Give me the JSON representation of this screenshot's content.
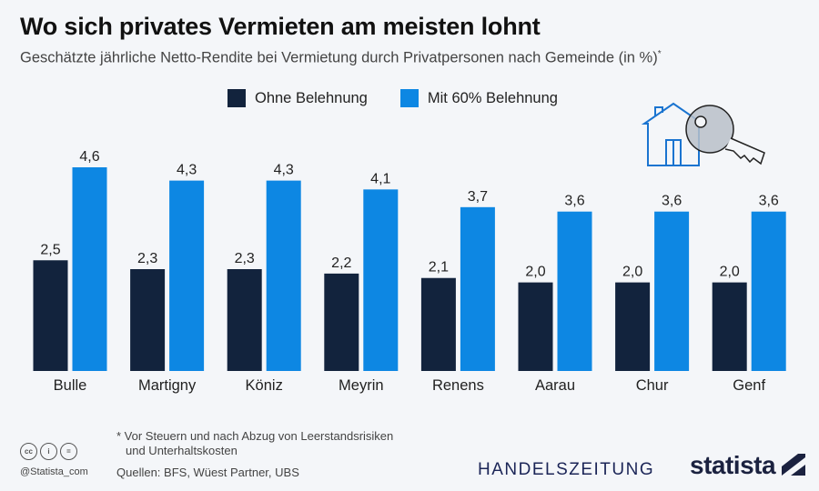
{
  "title": "Wo sich privates Vermieten am meisten lohnt",
  "subtitle": "Geschätzte jährliche Netto-Rendite bei Vermietung durch Privatpersonen nach Gemeinde (in %)",
  "subtitle_mark": "*",
  "colors": {
    "dark": "#12233d",
    "blue": "#0d87e3",
    "background": "#f4f6f9"
  },
  "chart_data": {
    "type": "bar",
    "categories": [
      "Bulle",
      "Martigny",
      "Köniz",
      "Meyrin",
      "Renens",
      "Aarau",
      "Chur",
      "Genf"
    ],
    "series": [
      {
        "name": "Ohne Belehnung",
        "values": [
          2.5,
          2.3,
          2.3,
          2.2,
          2.1,
          2.0,
          2.0,
          2.0
        ],
        "labels": [
          "2,5",
          "2,3",
          "2,3",
          "2,2",
          "2,1",
          "2,0",
          "2,0",
          "2,0"
        ]
      },
      {
        "name": "Mit 60% Belehnung",
        "values": [
          4.6,
          4.3,
          4.3,
          4.1,
          3.7,
          3.6,
          3.6,
          3.6
        ],
        "labels": [
          "4,6",
          "4,3",
          "4,3",
          "4,1",
          "3,7",
          "3,6",
          "3,6",
          "3,6"
        ]
      }
    ],
    "ylim": [
      0,
      4.6
    ],
    "grid": false,
    "legend": "top-center"
  },
  "illustration": {
    "icon": "house-key-icon"
  },
  "footer": {
    "note": "* Vor Steuern und nach Abzug von Leerstandsrisiken",
    "note2": "und Unterhaltskosten",
    "sources": "Quellen: BFS, Wüest Partner, UBS",
    "handle": "@Statista_com",
    "cc_icons": [
      "cc",
      "i",
      "="
    ],
    "brand1": "HANDELSZEITUNG",
    "brand2": "statista"
  }
}
